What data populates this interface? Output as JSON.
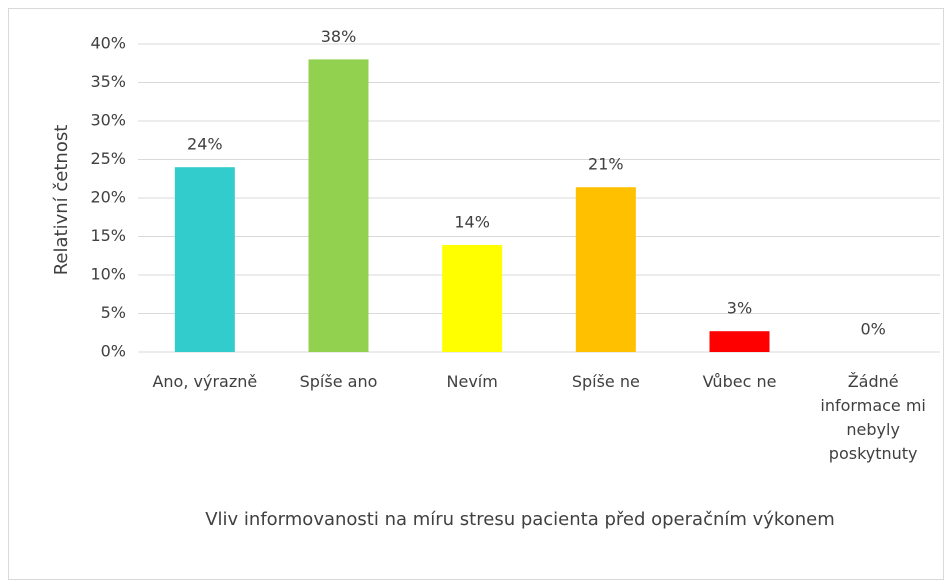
{
  "chart_data": {
    "type": "bar",
    "x_label": "Vliv informovanosti na míru stresu pacienta před operačním výkonem",
    "y_label": "Relativní četnost",
    "categories": [
      "Ano, výrazně",
      "Spíše ano",
      "Nevím",
      "Spíše ne",
      "Vůbec ne",
      "Žádné informace mi nebyly poskytnuty"
    ],
    "values": [
      24,
      38,
      13.9,
      21.4,
      2.7,
      0
    ],
    "value_labels": [
      "24%",
      "38%",
      "14%",
      "21%",
      "3%",
      "0%"
    ],
    "colors": [
      "#33cccc",
      "#92d050",
      "#ffff00",
      "#ffc000",
      "#ff0000",
      "#7f7f7f"
    ],
    "ylim": [
      0,
      40
    ],
    "yticks": [
      {
        "value": 0,
        "label": "0%"
      },
      {
        "value": 5,
        "label": "5%"
      },
      {
        "value": 10,
        "label": "10%"
      },
      {
        "value": 15,
        "label": "15%"
      },
      {
        "value": 20,
        "label": "20%"
      },
      {
        "value": 25,
        "label": "25%"
      },
      {
        "value": 30,
        "label": "30%"
      },
      {
        "value": 35,
        "label": "35%"
      },
      {
        "value": 40,
        "label": "40%"
      }
    ],
    "grid": true
  }
}
